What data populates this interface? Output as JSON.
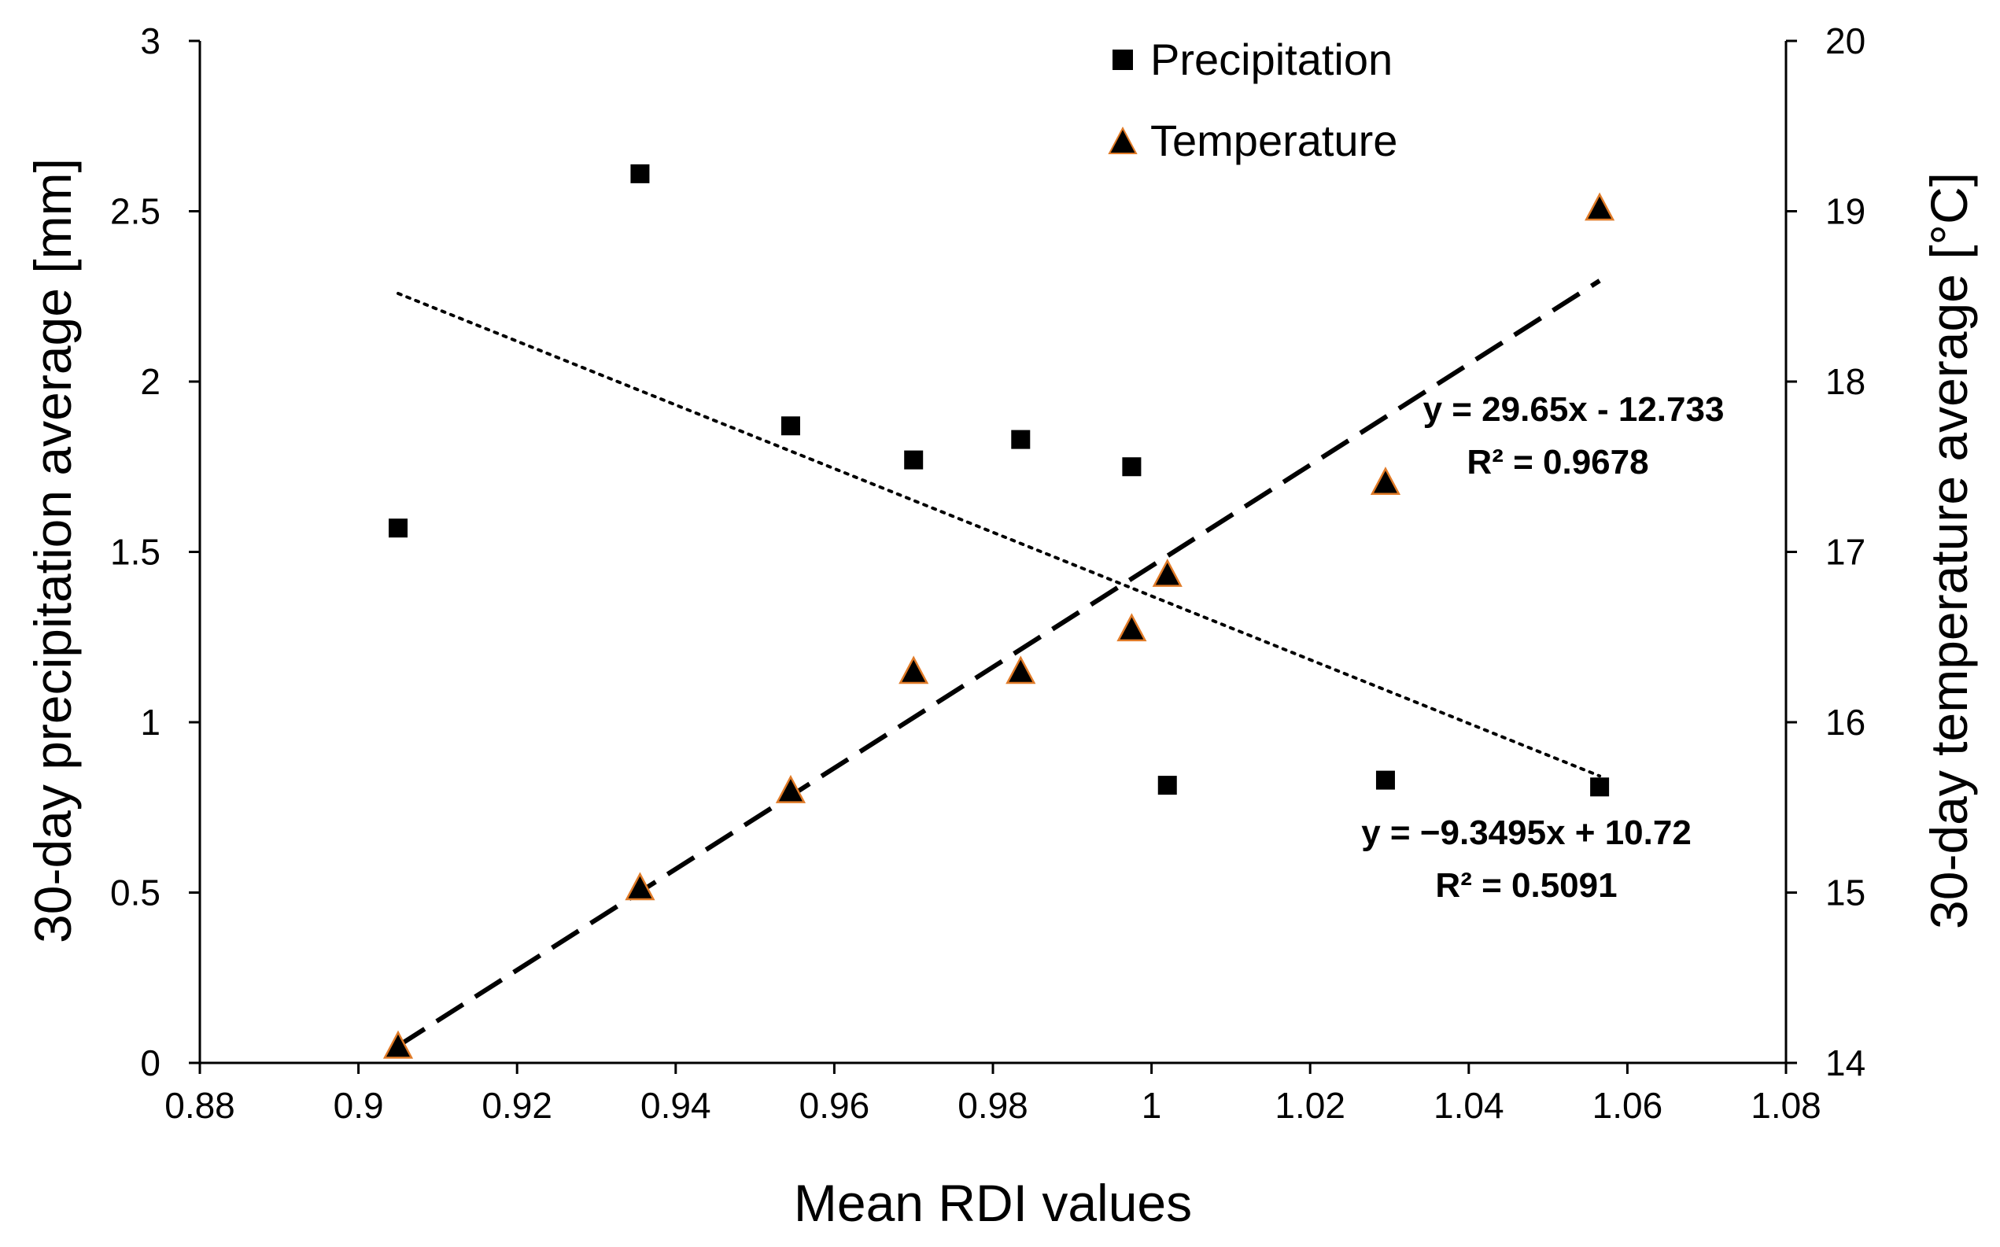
{
  "chart_data": {
    "type": "scatter",
    "title": "",
    "xlabel": "Mean RDI values",
    "ylabel": "30-day precipitation average [mm]",
    "y2label": "30-day temperature average [°C]",
    "xlim": [
      0.88,
      1.08
    ],
    "ylim": [
      0,
      3
    ],
    "y2lim": [
      14,
      20
    ],
    "x_ticks": [
      "0.88",
      "0.9",
      "0.92",
      "0.94",
      "0.96",
      "0.98",
      "1",
      "1.02",
      "1.04",
      "1.06",
      "1.08"
    ],
    "y_ticks": [
      "0",
      "0.5",
      "1",
      "1.5",
      "2",
      "2.5",
      "3"
    ],
    "y2_ticks": [
      "14",
      "15",
      "16",
      "17",
      "18",
      "19",
      "20"
    ],
    "grid": false,
    "legend_position": "top-center",
    "series": [
      {
        "name": "Precipitation",
        "axis": "left",
        "marker": "square",
        "color": "#000000",
        "x": [
          0.905,
          0.9355,
          0.9545,
          0.97,
          0.9835,
          0.9975,
          1.002,
          1.0295,
          1.0565
        ],
        "y": [
          1.57,
          2.61,
          1.87,
          1.77,
          1.83,
          1.75,
          0.815,
          0.83,
          0.81
        ],
        "trendline": {
          "style": "dotted",
          "slope": -9.3495,
          "intercept": 10.72,
          "x_range": [
            0.905,
            1.0565
          ],
          "equation": "y = −9.3495x + 10.72",
          "r2": "R² = 0.5091"
        }
      },
      {
        "name": "Temperature",
        "axis": "right",
        "marker": "triangle",
        "color": "#000000",
        "edge_color": "#e07b28",
        "x": [
          0.905,
          0.9355,
          0.9545,
          0.97,
          0.9835,
          0.9975,
          1.002,
          1.0295,
          1.0565
        ],
        "y": [
          14.1,
          15.03,
          15.6,
          16.3,
          16.3,
          16.55,
          16.87,
          17.41,
          19.02
        ],
        "trendline": {
          "style": "dashed",
          "slope": 29.65,
          "intercept": -12.733,
          "x_range": [
            0.905,
            1.0565
          ],
          "equation": "y = 29.65x - 12.733",
          "r2": "R² = 0.9678"
        }
      }
    ]
  }
}
